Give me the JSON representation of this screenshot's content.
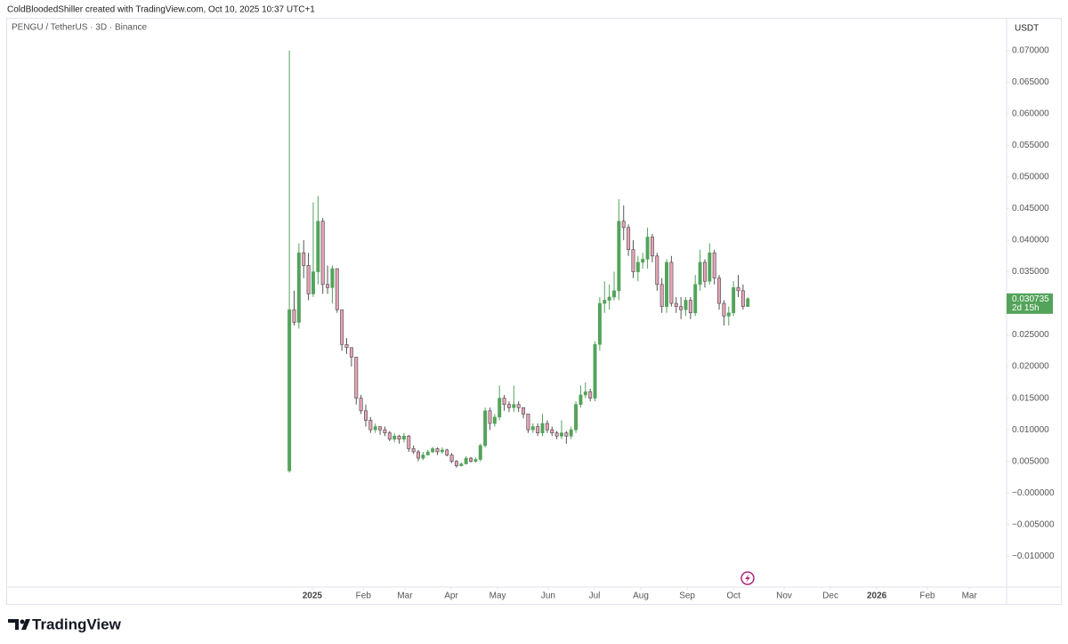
{
  "header": "ColdBloodedShiller created with TradingView.com, Oct 10, 2025 10:37 UTC+1",
  "logo": "TradingView",
  "chart_data": {
    "type": "candlestick",
    "title": "PENGU / TetherUS · 3D · Binance",
    "y_axis_label": "USDT",
    "up_color": "#53a35a",
    "down_color": "#e6a3b6",
    "grid": false,
    "open": [
      0.0035,
      0.029,
      0.027,
      0.038,
      0.036,
      0.0315,
      0.035,
      0.043,
      0.033,
      0.0325,
      0.0355,
      0.029,
      0.0235,
      0.023,
      0.0215,
      0.015,
      0.013,
      0.0115,
      0.01,
      0.0105,
      0.01,
      0.0095,
      0.0085,
      0.009,
      0.0085,
      0.009,
      0.007,
      0.0065,
      0.0055,
      0.006,
      0.0065,
      0.007,
      0.0065,
      0.0068,
      0.006,
      0.005,
      0.0043,
      0.0046,
      0.0055,
      0.005,
      0.0053,
      0.0075,
      0.013,
      0.011,
      0.012,
      0.015,
      0.014,
      0.0135,
      0.014,
      0.0135,
      0.0125,
      0.01,
      0.0105,
      0.0095,
      0.011,
      0.01,
      0.0095,
      0.009,
      0.0095,
      0.009,
      0.01,
      0.014,
      0.0155,
      0.016,
      0.015,
      0.0235,
      0.03,
      0.0305,
      0.031,
      0.032,
      0.043,
      0.042,
      0.0385,
      0.035,
      0.0365,
      0.037,
      0.0405,
      0.0375,
      0.033,
      0.0295,
      0.0365,
      0.03,
      0.0295,
      0.029,
      0.0305,
      0.0285,
      0.033,
      0.0365,
      0.0335,
      0.038,
      0.034,
      0.03,
      0.028,
      0.0285,
      0.0325,
      0.032,
      0.0295
    ],
    "high": [
      0.07,
      0.032,
      0.0395,
      0.04,
      0.038,
      0.046,
      0.047,
      0.0435,
      0.036,
      0.036,
      0.0355,
      0.029,
      0.0245,
      0.0225,
      0.0215,
      0.0155,
      0.014,
      0.012,
      0.011,
      0.0105,
      0.0105,
      0.0098,
      0.0095,
      0.0092,
      0.0095,
      0.0092,
      0.0075,
      0.0068,
      0.0065,
      0.0068,
      0.0073,
      0.0072,
      0.0072,
      0.007,
      0.0063,
      0.0052,
      0.0048,
      0.0058,
      0.0057,
      0.0056,
      0.0078,
      0.0135,
      0.0135,
      0.0125,
      0.017,
      0.0155,
      0.0145,
      0.017,
      0.0145,
      0.0135,
      0.0125,
      0.011,
      0.011,
      0.0125,
      0.0115,
      0.0105,
      0.0098,
      0.0115,
      0.0098,
      0.0105,
      0.0145,
      0.017,
      0.0175,
      0.0165,
      0.024,
      0.031,
      0.0335,
      0.033,
      0.035,
      0.0465,
      0.0455,
      0.0425,
      0.04,
      0.0375,
      0.038,
      0.042,
      0.041,
      0.038,
      0.034,
      0.037,
      0.0375,
      0.031,
      0.031,
      0.031,
      0.031,
      0.0345,
      0.0385,
      0.037,
      0.0395,
      0.0385,
      0.0345,
      0.0305,
      0.0295,
      0.0335,
      0.0345,
      0.033,
      0.031
    ],
    "low": [
      0.0032,
      0.0265,
      0.026,
      0.034,
      0.0305,
      0.031,
      0.033,
      0.0315,
      0.0315,
      0.03,
      0.0285,
      0.0225,
      0.022,
      0.02,
      0.014,
      0.0125,
      0.0105,
      0.0095,
      0.0095,
      0.0092,
      0.009,
      0.0082,
      0.008,
      0.0078,
      0.008,
      0.0065,
      0.0062,
      0.005,
      0.0052,
      0.006,
      0.0063,
      0.006,
      0.0062,
      0.0058,
      0.0047,
      0.004,
      0.0042,
      0.0045,
      0.0048,
      0.0048,
      0.005,
      0.0072,
      0.01,
      0.0105,
      0.0115,
      0.013,
      0.0128,
      0.0128,
      0.0128,
      0.0118,
      0.0095,
      0.0095,
      0.009,
      0.009,
      0.0095,
      0.009,
      0.0085,
      0.0085,
      0.0078,
      0.0085,
      0.0095,
      0.0135,
      0.015,
      0.0145,
      0.0145,
      0.0225,
      0.0285,
      0.029,
      0.0305,
      0.0305,
      0.04,
      0.0375,
      0.034,
      0.0335,
      0.0355,
      0.0355,
      0.0365,
      0.032,
      0.0285,
      0.0285,
      0.0295,
      0.0285,
      0.0275,
      0.028,
      0.0275,
      0.028,
      0.032,
      0.0325,
      0.033,
      0.033,
      0.029,
      0.0265,
      0.0265,
      0.028,
      0.031,
      0.029,
      0.0295
    ],
    "close": [
      0.029,
      0.027,
      0.038,
      0.036,
      0.0315,
      0.035,
      0.043,
      0.033,
      0.0325,
      0.0355,
      0.029,
      0.0235,
      0.023,
      0.0215,
      0.015,
      0.013,
      0.0115,
      0.01,
      0.0105,
      0.01,
      0.0095,
      0.0085,
      0.009,
      0.0085,
      0.009,
      0.007,
      0.0065,
      0.0055,
      0.006,
      0.0065,
      0.007,
      0.0065,
      0.0068,
      0.006,
      0.005,
      0.0043,
      0.0046,
      0.0055,
      0.005,
      0.0053,
      0.0075,
      0.013,
      0.011,
      0.012,
      0.015,
      0.014,
      0.0135,
      0.014,
      0.0135,
      0.0125,
      0.01,
      0.0105,
      0.0095,
      0.011,
      0.01,
      0.0095,
      0.009,
      0.0095,
      0.009,
      0.01,
      0.014,
      0.0155,
      0.016,
      0.015,
      0.0235,
      0.03,
      0.0305,
      0.031,
      0.032,
      0.043,
      0.042,
      0.0385,
      0.035,
      0.0365,
      0.037,
      0.0405,
      0.0375,
      0.033,
      0.0295,
      0.0365,
      0.03,
      0.0295,
      0.029,
      0.0305,
      0.0285,
      0.033,
      0.0365,
      0.0335,
      0.038,
      0.034,
      0.03,
      0.028,
      0.0285,
      0.0325,
      0.032,
      0.0295,
      0.030735
    ],
    "last_price_label": "0.030735",
    "countdown": "2d 15h",
    "xlim": [
      -59.1,
      150.0
    ],
    "xticks": [
      {
        "value": 4.8,
        "label": "2025"
      },
      {
        "value": 15.5,
        "label": "Feb"
      },
      {
        "value": 24.2,
        "label": "Mar"
      },
      {
        "value": 33.9,
        "label": "Apr"
      },
      {
        "value": 43.6,
        "label": "May"
      },
      {
        "value": 54.2,
        "label": "Jun"
      },
      {
        "value": 63.9,
        "label": "Jul"
      },
      {
        "value": 73.6,
        "label": "Aug"
      },
      {
        "value": 83.3,
        "label": "Sep"
      },
      {
        "value": 93.0,
        "label": "Oct"
      },
      {
        "value": 103.6,
        "label": "Nov"
      },
      {
        "value": 113.3,
        "label": "Dec"
      },
      {
        "value": 123.0,
        "label": "2026"
      },
      {
        "value": 133.6,
        "label": "Feb"
      },
      {
        "value": 142.4,
        "label": "Mar"
      }
    ],
    "ylim": [
      -0.0149,
      0.0752
    ],
    "yticks": [
      {
        "value": 0.07,
        "label": "0.070000"
      },
      {
        "value": 0.065,
        "label": "0.065000"
      },
      {
        "value": 0.06,
        "label": "0.060000"
      },
      {
        "value": 0.055,
        "label": "0.055000"
      },
      {
        "value": 0.05,
        "label": "0.050000"
      },
      {
        "value": 0.045,
        "label": "0.045000"
      },
      {
        "value": 0.04,
        "label": "0.040000"
      },
      {
        "value": 0.035,
        "label": "0.035000"
      },
      {
        "value": 0.03,
        "label": "0.030000"
      },
      {
        "value": 0.025,
        "label": "0.025000"
      },
      {
        "value": 0.02,
        "label": "0.020000"
      },
      {
        "value": 0.015,
        "label": "0.015000"
      },
      {
        "value": 0.01,
        "label": "0.010000"
      },
      {
        "value": 0.005,
        "label": "0.005000"
      },
      {
        "value": 0,
        "label": "−0.000000"
      },
      {
        "value": -0.005,
        "label": "−0.005000"
      },
      {
        "value": -0.01,
        "label": "−0.010000"
      }
    ]
  }
}
